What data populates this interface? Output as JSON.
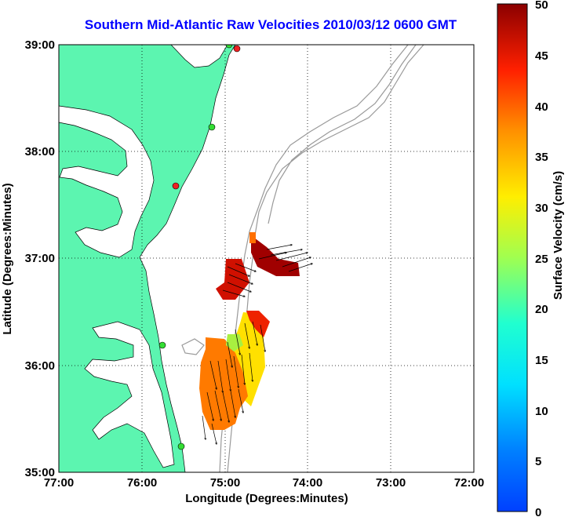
{
  "title": "Southern Mid-Atlantic Raw Velocities 2010/03/12 0600 GMT",
  "map": {
    "xlabel": "Longitude (Degrees:Minutes)",
    "ylabel": "Latitude (Degrees:Minutes)",
    "lon_ticks": [
      "77:00",
      "76:00",
      "75:00",
      "74:00",
      "73:00",
      "72:00"
    ],
    "lat_ticks": [
      "39:00",
      "38:00",
      "37:00",
      "36:00",
      "35:00"
    ],
    "lon_range": [
      -77,
      -72
    ],
    "lat_range": [
      35,
      39
    ],
    "grid": "dotted",
    "land_color": "#5cf5b0",
    "water_color": "#ffffff",
    "bathymetry_color": "#999999",
    "station_color": "#33dd33",
    "station_active_color": "#ee2222"
  },
  "colorbar": {
    "label": "Surface Velocity (cm/s)",
    "ticks": [
      "0",
      "5",
      "10",
      "15",
      "20",
      "25",
      "30",
      "35",
      "40",
      "45",
      "50"
    ],
    "range": [
      0,
      50
    ],
    "colormap": "jet"
  }
}
